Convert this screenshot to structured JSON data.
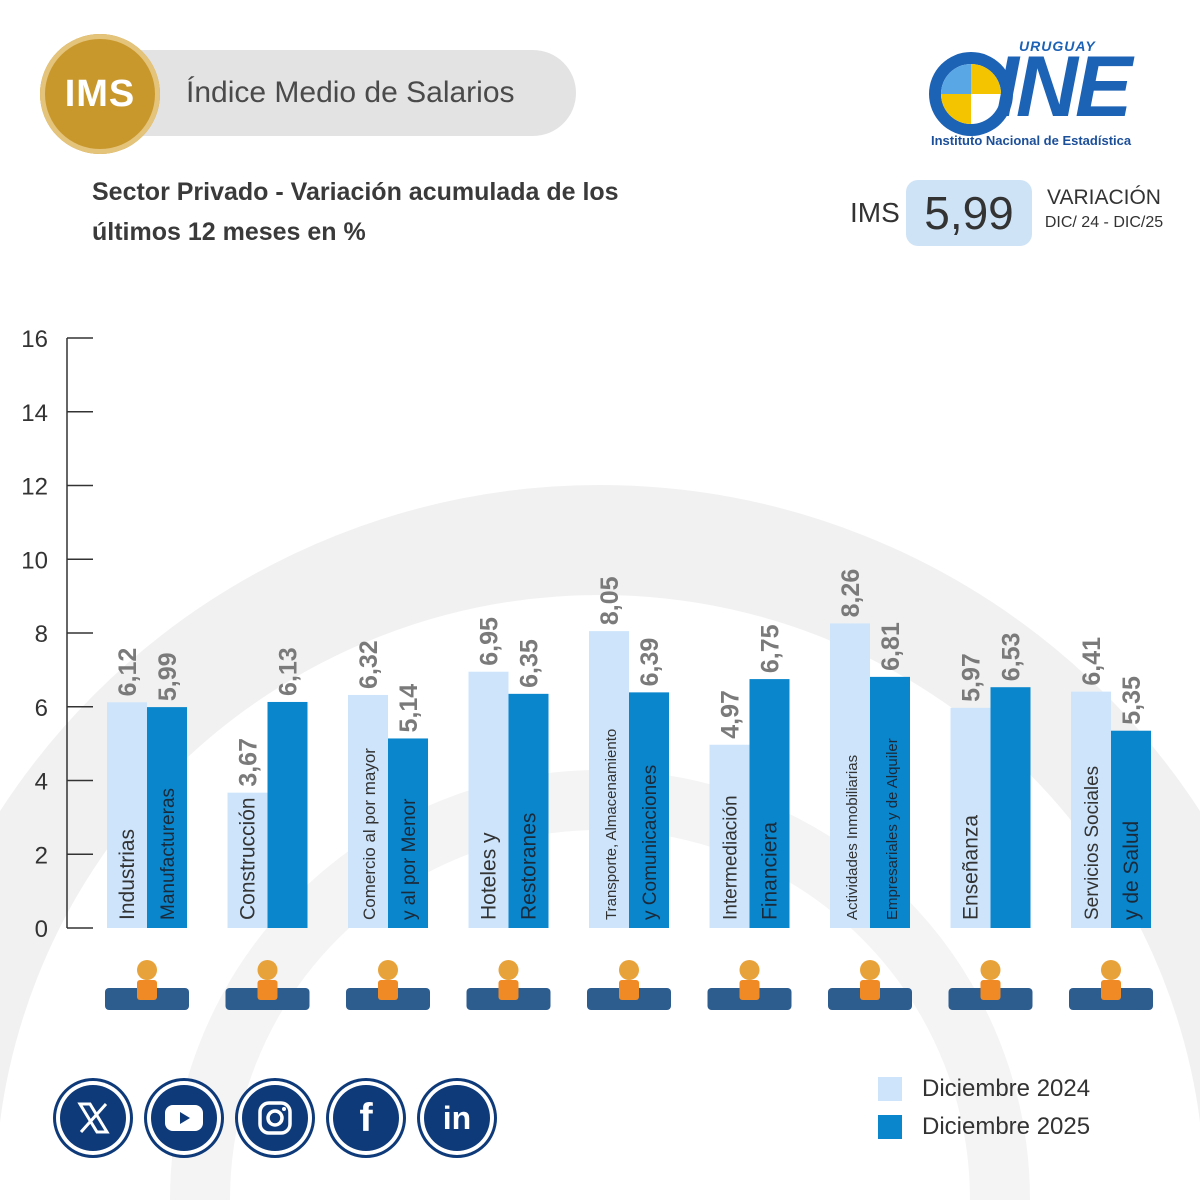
{
  "header": {
    "badge": "IMS",
    "title": "Índice Medio de Salarios"
  },
  "subtitle": {
    "line1": "Sector Privado - Variación acumulada de los",
    "line2": "últimos 12 meses en %"
  },
  "logo": {
    "top_text": "URUGUAY",
    "mark": "INE",
    "caption": "Instituto Nacional de Estadística"
  },
  "indicator": {
    "label": "IMS",
    "value": "5,99",
    "variation_label": "VARIACIÓN",
    "period": "DIC/ 24 - DIC/25"
  },
  "colors": {
    "light_bar": "#cde4fb",
    "dark_bar": "#0a86cc",
    "label_gray": "#7a7a7a",
    "navy": "#0e3a7a",
    "gold": "#c9982d"
  },
  "chart_data": {
    "type": "bar",
    "ylim": [
      0,
      16
    ],
    "yticks": [
      "0",
      "2",
      "4",
      "6",
      "8",
      "10",
      "12",
      "14",
      "16"
    ],
    "categories": [
      {
        "line1": "Industrias",
        "line2": "Manufactureras",
        "icon": "factory-worker-icon"
      },
      {
        "line1": "Construcción",
        "line2": "",
        "icon": "construction-worker-icon"
      },
      {
        "line1": "Comercio al por mayor",
        "line2": "y al por Menor",
        "icon": "market-stall-icon"
      },
      {
        "line1": "Hoteles y",
        "line2": "Restoranes",
        "icon": "restaurant-icon"
      },
      {
        "line1": "Transporte, Almacenamiento",
        "line2": "y Comunicaciones",
        "icon": "transport-icon"
      },
      {
        "line1": "Intermediación",
        "line2": "Financiera",
        "icon": "finance-icon"
      },
      {
        "line1": "Actividades Inmobiliarias",
        "line2": "Empresariales y de Alquiler",
        "icon": "house-keys-icon"
      },
      {
        "line1": "Enseñanza",
        "line2": "",
        "icon": "graduate-icon"
      },
      {
        "line1": "Servicios Sociales",
        "line2": "y de Salud",
        "icon": "hospital-icon"
      }
    ],
    "series": [
      {
        "name": "Diciembre 2024",
        "values": [
          6.12,
          3.67,
          6.32,
          6.95,
          8.05,
          4.97,
          8.26,
          5.97,
          6.41
        ],
        "labels": [
          "6,12",
          "3,67",
          "6,32",
          "6,95",
          "8,05",
          "4,97",
          "8,26",
          "5,97",
          "6,41"
        ]
      },
      {
        "name": "Diciembre 2025",
        "values": [
          5.99,
          6.13,
          5.14,
          6.35,
          6.39,
          6.75,
          6.81,
          6.53,
          5.35
        ],
        "labels": [
          "5,99",
          "6,13",
          "5,14",
          "6,35",
          "6,39",
          "6,75",
          "6,81",
          "6,53",
          "5,35"
        ]
      }
    ]
  },
  "legend": {
    "item1": "Diciembre 2024",
    "item2": "Diciembre 2025"
  },
  "social": [
    {
      "icon": "x-icon",
      "glyph": "X"
    },
    {
      "icon": "youtube-icon",
      "glyph": "▶"
    },
    {
      "icon": "instagram-icon",
      "glyph": ""
    },
    {
      "icon": "facebook-icon",
      "glyph": "f"
    },
    {
      "icon": "linkedin-icon",
      "glyph": "in"
    }
  ]
}
